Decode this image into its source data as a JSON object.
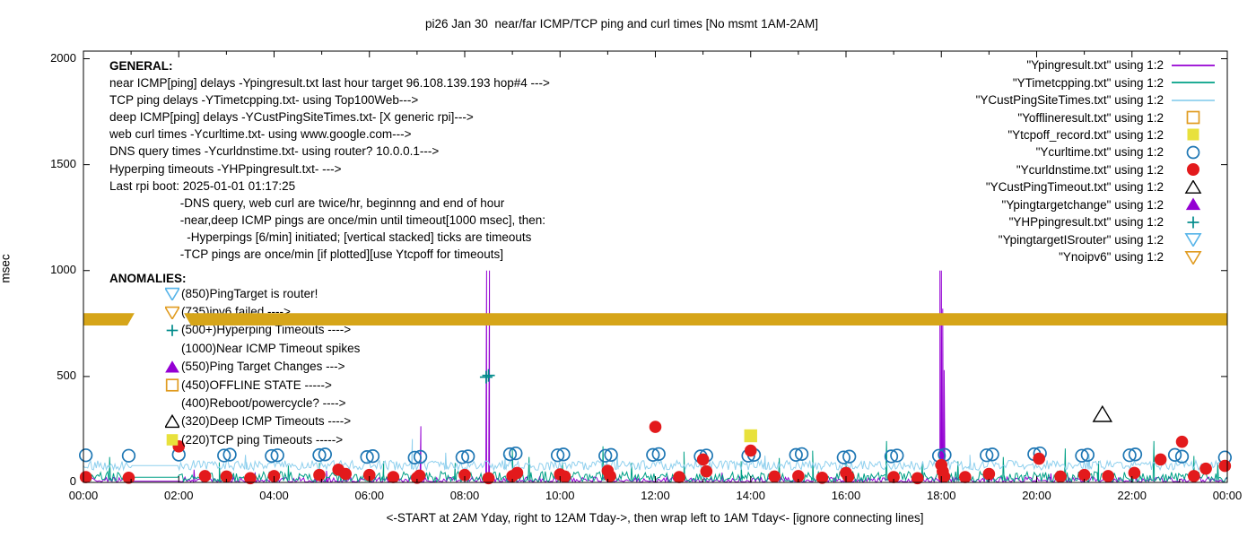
{
  "title": "pi26 Jan 30  near/far ICMP/TCP ping and curl times [No msmt 1AM-2AM]",
  "ylabel": "msec",
  "xlabel": "<-START at 2AM Yday, right to 12AM Tday->, then wrap left to 1AM Tday<- [ignore connecting lines]",
  "axes": {
    "y_tick_labels": [
      "0",
      "500",
      "1000",
      "1500",
      "2000"
    ],
    "y_tick_values": [
      0,
      500,
      1000,
      1500,
      2000
    ],
    "x_tick_labels": [
      "00:00",
      "02:00",
      "04:00",
      "06:00",
      "08:00",
      "10:00",
      "12:00",
      "14:00",
      "16:00",
      "18:00",
      "20:00",
      "22:00",
      "00:00"
    ],
    "x_tick_hours": [
      0,
      2,
      4,
      6,
      8,
      10,
      12,
      14,
      16,
      18,
      20,
      22,
      24
    ],
    "xlim_hours": [
      0,
      24
    ],
    "ylim_msec": [
      0,
      2036
    ],
    "grid": false,
    "legend_position": "top-right"
  },
  "legend": [
    {
      "label": "\"Ypingresult.txt\" using 1:2",
      "marker": "line",
      "color": "#9400d3"
    },
    {
      "label": "\"YTimetcpping.txt\" using 1:2",
      "marker": "line",
      "color": "#00a086"
    },
    {
      "label": "\"YCustPingSiteTimes.txt\" using 1:2",
      "marker": "line",
      "color": "#8fd0ee"
    },
    {
      "label": "\"Yofflineresult.txt\" using 1:2",
      "marker": "square-open",
      "color": "#e09b20"
    },
    {
      "label": "\"Ytcpoff_record.txt\" using 1:2",
      "marker": "square-filled",
      "color": "#e8e13c"
    },
    {
      "label": "\"Ycurltime.txt\" using 1:2",
      "marker": "circle-open",
      "color": "#1f77b4"
    },
    {
      "label": "\"Ycurldnstime.txt\" using 1:2",
      "marker": "circle-filled",
      "color": "#e31a1c"
    },
    {
      "label": "\"YCustPingTimeout.txt\" using 1:2",
      "marker": "triangle-open",
      "color": "#000000"
    },
    {
      "label": "\"Ypingtargetchange\" using 1:2",
      "marker": "triangle-filled",
      "color": "#9400d3"
    },
    {
      "label": "\"YHPpingresult.txt\" using 1:2",
      "marker": "plus",
      "color": "#008b8b"
    },
    {
      "label": "\"YpingtargetISrouter\" using 1:2",
      "marker": "triangle-down-open",
      "color": "#56b4e9"
    },
    {
      "label": "\"Ynoipv6\" using 1:2",
      "marker": "triangle-down-open",
      "color": "#e09b20"
    }
  ],
  "general": {
    "heading": "GENERAL:",
    "lines": [
      "near ICMP[ping] delays -Ypingresult.txt last hour target 96.108.139.193 hop#4 --->",
      "TCP ping delays -YTimetcpping.txt- using Top100Web--->",
      "deep ICMP[ping] delays -YCustPingSiteTimes.txt- [X generic rpi]--->",
      "web curl times -Ycurltime.txt- using www.google.com--->",
      "DNS query times -Ycurldnstime.txt- using router? 10.0.0.1--->",
      "Hyperping timeouts -YHPpingresult.txt- --->",
      "Last rpi boot: 2025-01-01 01:17:25",
      "                     -DNS query, web curl are twice/hr, beginnng and end of hour",
      "                     -near,deep ICMP pings are once/min until timeout[1000 msec], then:",
      "                       -Hyperpings [6/min] initiated; [vertical stacked] ticks are timeouts",
      "                     -TCP pings are once/min [if plotted][use Ytcpoff for timeouts]"
    ]
  },
  "anomalies": {
    "heading": "ANOMALIES:",
    "items": [
      {
        "icon": "triangle-down-open",
        "color": "#56b4e9",
        "text": "(850)PingTarget is router!"
      },
      {
        "icon": "triangle-down-open",
        "color": "#e09b20",
        "text": "(735)ipv6 failed ---->"
      },
      {
        "icon": "plus",
        "color": "#008b8b",
        "text": "(500+)Hyperping Timeouts ---->"
      },
      {
        "icon": "none",
        "color": "",
        "text": "(1000)Near ICMP Timeout spikes"
      },
      {
        "icon": "triangle-filled",
        "color": "#9400d3",
        "text": "(550)Ping Target Changes --->"
      },
      {
        "icon": "square-open",
        "color": "#e09b20",
        "text": "(450)OFFLINE STATE ----->"
      },
      {
        "icon": "none",
        "color": "",
        "text": "(400)Reboot/powercycle? ---->"
      },
      {
        "icon": "triangle-open",
        "color": "#000000",
        "text": "(320)Deep ICMP Timeouts ---->"
      },
      {
        "icon": "square-filled",
        "color": "#e8e13c",
        "text": "(220)TCP ping Timeouts ----->"
      }
    ]
  },
  "chart_data": {
    "type": "line",
    "x_unit": "hours 0-24 (00:00 to 00:00)",
    "no_measurement_window_hours": [
      1,
      2
    ],
    "band": {
      "series": "Ynoipv6",
      "y_msec": 770,
      "thickness_msec": 58,
      "segments_hours": [
        [
          0,
          1.07
        ],
        [
          2.11,
          24
        ]
      ],
      "color": "#d6a519"
    },
    "lines": [
      {
        "name": "Ypingresult",
        "color": "#9400d3",
        "baseline_msec": [
          2,
          26
        ],
        "gap_value": 6,
        "seed": 7,
        "pow": 2,
        "spikes": [
          [
            2.32,
            60
          ],
          [
            3.6,
            48
          ],
          [
            5.1,
            55
          ],
          [
            7.08,
            265
          ],
          [
            8.46,
            1000
          ],
          [
            8.52,
            1000
          ],
          [
            10.15,
            52
          ],
          [
            13.4,
            46
          ],
          [
            17.97,
            1000
          ],
          [
            18.0,
            1000
          ],
          [
            18.03,
            820
          ],
          [
            18.06,
            530
          ],
          [
            20.3,
            42
          ],
          [
            22.1,
            50
          ]
        ]
      },
      {
        "name": "YTimetcpping",
        "color": "#00a086",
        "baseline_msec": [
          4,
          52
        ],
        "gap_value": 24,
        "seed": 3,
        "pow": 1.4,
        "spikes": [
          [
            0.55,
            120
          ],
          [
            2.85,
            95
          ],
          [
            4.3,
            80
          ],
          [
            4.95,
            92
          ],
          [
            6.3,
            100
          ],
          [
            7.8,
            92
          ],
          [
            9.0,
            160
          ],
          [
            9.35,
            120
          ],
          [
            10.05,
            95
          ],
          [
            10.9,
            170
          ],
          [
            11.5,
            92
          ],
          [
            12.6,
            145
          ],
          [
            13.8,
            100
          ],
          [
            14.6,
            115
          ],
          [
            15.3,
            150
          ],
          [
            16.0,
            100
          ],
          [
            16.85,
            195
          ],
          [
            17.6,
            92
          ],
          [
            18.35,
            100
          ],
          [
            19.3,
            120
          ],
          [
            20.6,
            160
          ],
          [
            21.3,
            100
          ],
          [
            22.46,
            195
          ],
          [
            23.3,
            125
          ],
          [
            23.8,
            92
          ]
        ]
      },
      {
        "name": "YCustPingSiteTimes",
        "color": "#8fd0ee",
        "baseline_msec": [
          58,
          104
        ],
        "gap_value": 79,
        "seed": 11,
        "pow": 1,
        "spikes": [
          [
            3.4,
            130
          ],
          [
            6.9,
            205
          ],
          [
            7.6,
            140
          ],
          [
            8.85,
            130
          ],
          [
            11.2,
            132
          ],
          [
            14.3,
            126
          ],
          [
            18.6,
            130
          ],
          [
            21.1,
            135
          ]
        ]
      }
    ],
    "markers": [
      {
        "name": "Ycurltime",
        "marker": "circle-open",
        "color": "#1f77b4",
        "points": [
          [
            0.05,
            128
          ],
          [
            0.95,
            126
          ],
          [
            2.0,
            131
          ],
          [
            2.95,
            127
          ],
          [
            3.07,
            131
          ],
          [
            3.95,
            125
          ],
          [
            4.07,
            128
          ],
          [
            4.95,
            129
          ],
          [
            5.07,
            132
          ],
          [
            5.95,
            120
          ],
          [
            6.07,
            124
          ],
          [
            6.95,
            117
          ],
          [
            7.07,
            121
          ],
          [
            7.95,
            119
          ],
          [
            8.07,
            123
          ],
          [
            8.95,
            133
          ],
          [
            9.07,
            137
          ],
          [
            9.95,
            128
          ],
          [
            10.07,
            132
          ],
          [
            10.95,
            126
          ],
          [
            11.07,
            130
          ],
          [
            11.95,
            130
          ],
          [
            12.07,
            134
          ],
          [
            12.95,
            123
          ],
          [
            13.07,
            127
          ],
          [
            13.95,
            126
          ],
          [
            14.07,
            130
          ],
          [
            14.95,
            130
          ],
          [
            15.07,
            134
          ],
          [
            15.95,
            118
          ],
          [
            16.07,
            122
          ],
          [
            16.95,
            123
          ],
          [
            17.07,
            127
          ],
          [
            17.95,
            126
          ],
          [
            18.07,
            130
          ],
          [
            18.95,
            128
          ],
          [
            19.07,
            132
          ],
          [
            19.95,
            133
          ],
          [
            20.07,
            137
          ],
          [
            20.95,
            126
          ],
          [
            21.07,
            130
          ],
          [
            21.95,
            128
          ],
          [
            22.07,
            132
          ],
          [
            22.9,
            130
          ],
          [
            23.05,
            122
          ],
          [
            23.95,
            118
          ]
        ]
      },
      {
        "name": "Ycurldnstime",
        "marker": "circle-filled",
        "color": "#e31a1c",
        "points": [
          [
            0.05,
            25
          ],
          [
            0.95,
            22
          ],
          [
            2.0,
            170
          ],
          [
            2.55,
            30
          ],
          [
            3.0,
            28
          ],
          [
            3.5,
            20
          ],
          [
            4.0,
            30
          ],
          [
            4.95,
            35
          ],
          [
            5.35,
            60
          ],
          [
            5.5,
            40
          ],
          [
            6.0,
            35
          ],
          [
            6.5,
            25
          ],
          [
            7.0,
            22
          ],
          [
            7.05,
            32
          ],
          [
            8.0,
            35
          ],
          [
            8.5,
            20
          ],
          [
            9.0,
            30
          ],
          [
            9.1,
            45
          ],
          [
            10.0,
            38
          ],
          [
            10.1,
            28
          ],
          [
            11.0,
            55
          ],
          [
            11.05,
            30
          ],
          [
            12.0,
            262
          ],
          [
            12.5,
            25
          ],
          [
            13.0,
            108
          ],
          [
            13.07,
            52
          ],
          [
            14.0,
            150
          ],
          [
            14.5,
            28
          ],
          [
            15.0,
            30
          ],
          [
            15.5,
            22
          ],
          [
            16.0,
            45
          ],
          [
            16.05,
            28
          ],
          [
            17.0,
            25
          ],
          [
            17.5,
            20
          ],
          [
            18.0,
            82
          ],
          [
            18.03,
            52
          ],
          [
            18.06,
            28
          ],
          [
            18.5,
            25
          ],
          [
            19.0,
            40
          ],
          [
            20.05,
            112
          ],
          [
            20.5,
            28
          ],
          [
            21.0,
            35
          ],
          [
            21.5,
            30
          ],
          [
            22.05,
            45
          ],
          [
            22.6,
            108
          ],
          [
            23.05,
            192
          ],
          [
            23.3,
            30
          ],
          [
            23.55,
            65
          ],
          [
            23.95,
            78
          ]
        ]
      },
      {
        "name": "Ytcpoff_record",
        "marker": "square-filled",
        "color": "#e8e13c",
        "points": [
          [
            14.0,
            220
          ]
        ]
      },
      {
        "name": "YCustPingTimeout",
        "marker": "triangle-open",
        "color": "#000000",
        "points": [
          [
            21.38,
            320
          ]
        ]
      },
      {
        "name": "YHPpingresult",
        "marker": "plus",
        "color": "#008b8b",
        "points": [
          [
            8.45,
            497
          ],
          [
            8.5,
            505
          ]
        ]
      },
      {
        "name": "Yofflineresult",
        "marker": "square-open",
        "color": "#e09b20",
        "points": []
      },
      {
        "name": "Ypingtargetchange",
        "marker": "triangle-filled",
        "color": "#9400d3",
        "points": []
      },
      {
        "name": "YpingtargetISrouter",
        "marker": "triangle-down-open",
        "color": "#56b4e9",
        "points": []
      },
      {
        "name": "Ynoipv6",
        "marker": "triangle-down-open",
        "color": "#e09b20",
        "points": []
      }
    ]
  }
}
